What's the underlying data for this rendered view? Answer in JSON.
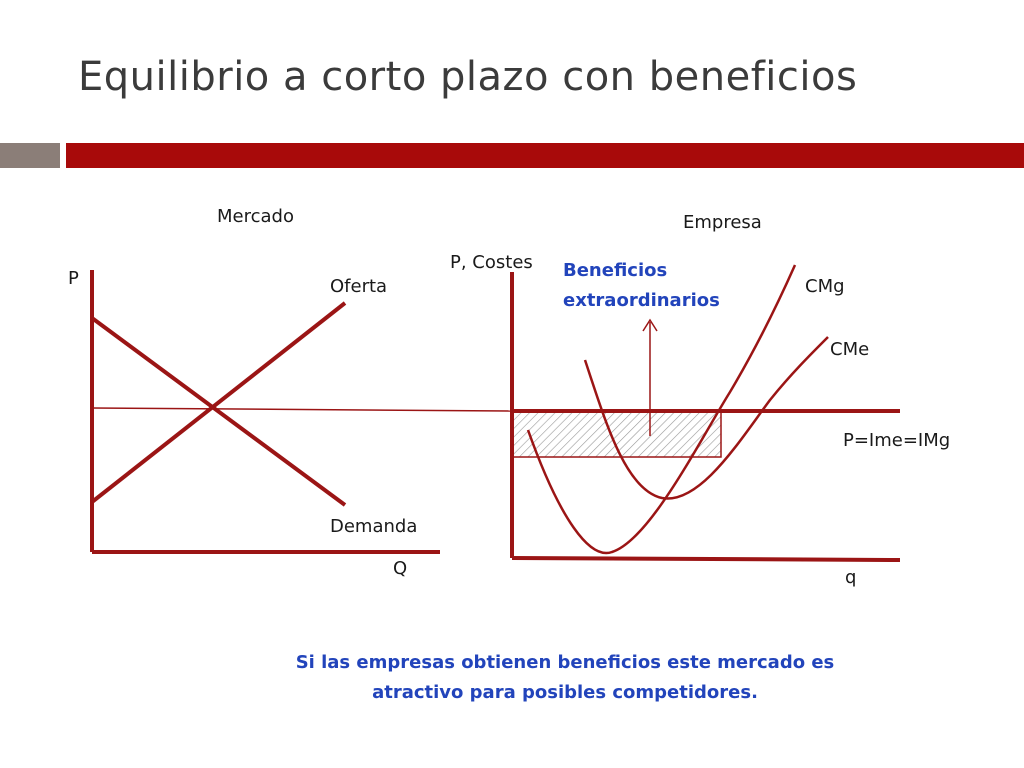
{
  "title": "Equilibrio a corto plazo con beneficios",
  "colors": {
    "curve": "#9b1515",
    "accent_text": "#2244bb",
    "title_bar": "#a80a0a",
    "title_bar_left": "#8b7e78"
  },
  "market": {
    "panel_label": "Mercado",
    "y_axis": "P",
    "x_axis": "Q",
    "supply_label": "Oferta",
    "demand_label": "Demanda"
  },
  "firm": {
    "panel_label": "Empresa",
    "y_axis": "P, Costes",
    "x_axis": "q",
    "marginal_cost_label": "CMg",
    "average_cost_label": "CMe",
    "price_line_label": "P=Ime=IMg",
    "profit_label_line1": "Beneficios",
    "profit_label_line2": "extraordinarios"
  },
  "footer": {
    "line1": "Si las empresas obtienen beneficios este mercado es",
    "line2": "atractivo para posibles competidores."
  }
}
